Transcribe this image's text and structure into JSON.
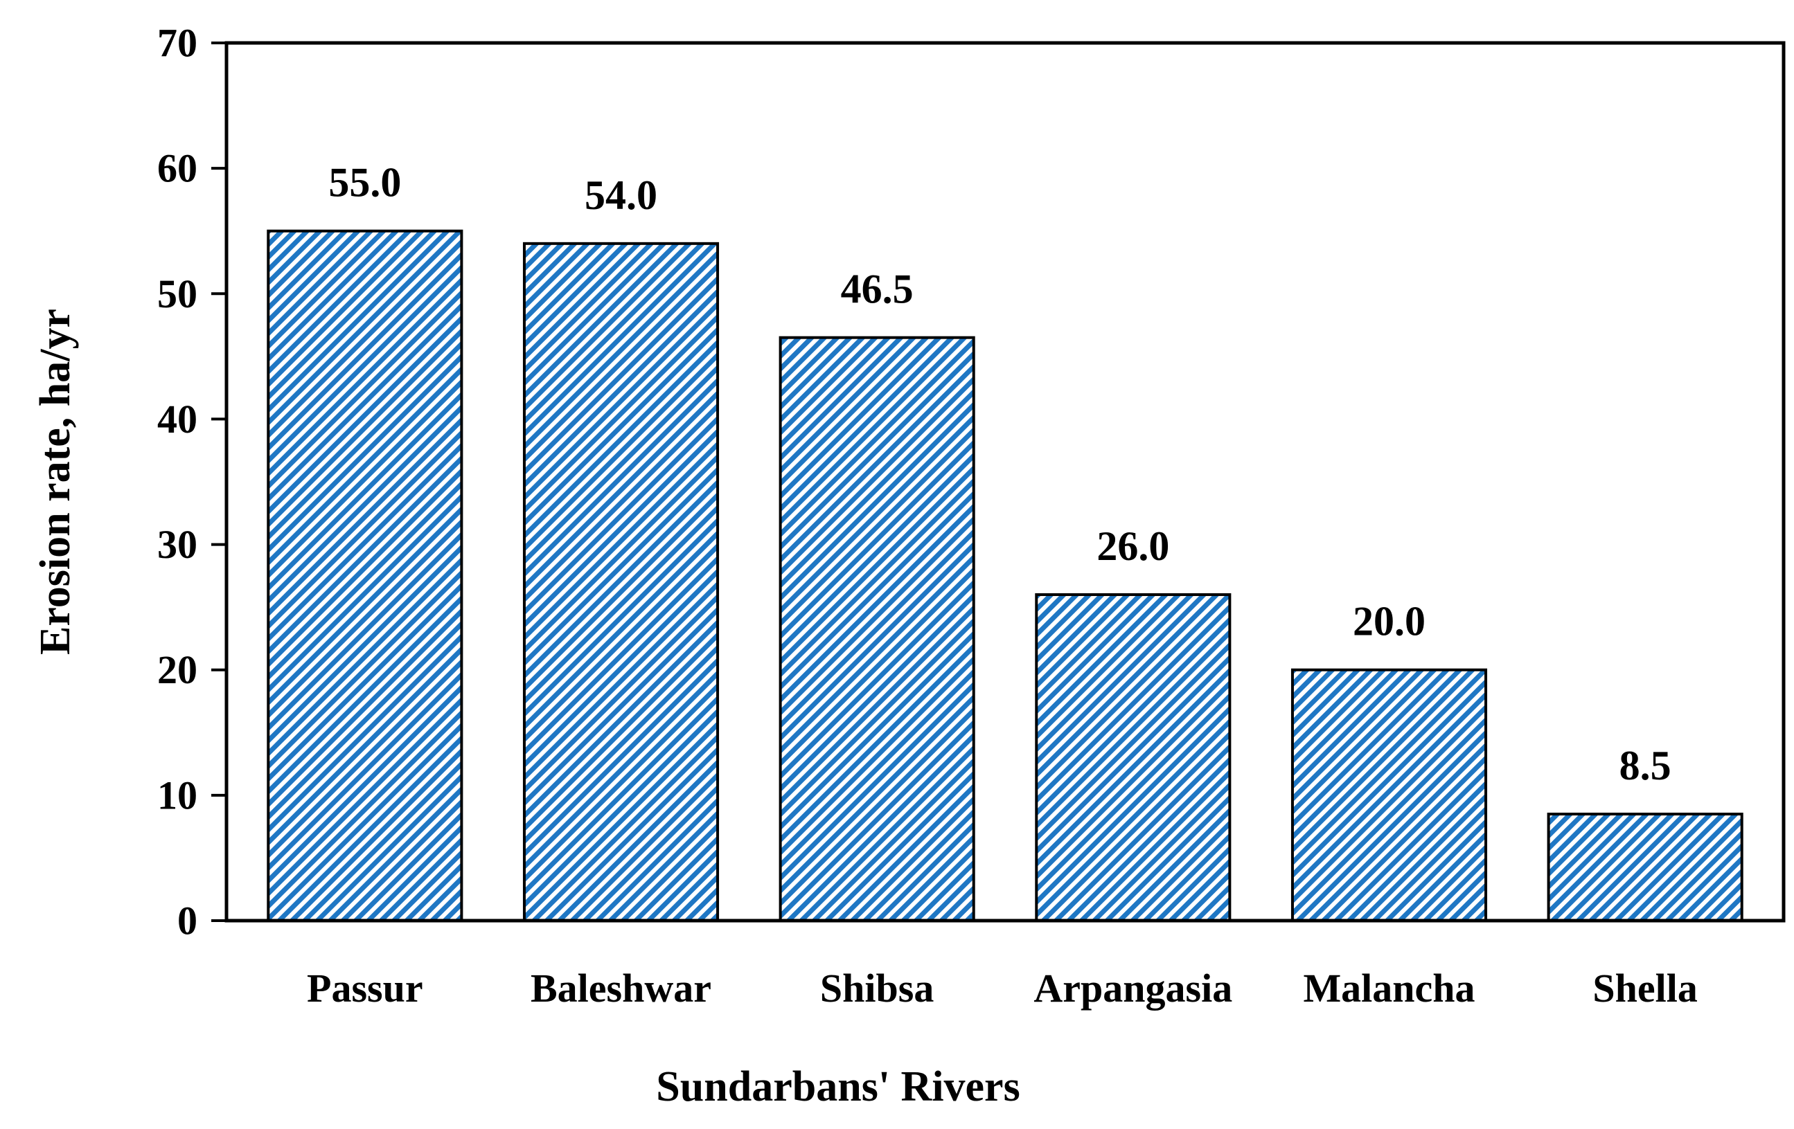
{
  "chart_data": {
    "type": "bar",
    "categories": [
      "Passur",
      "Baleshwar",
      "Shibsa",
      "Arpangasia",
      "Malancha",
      "Shella"
    ],
    "values": [
      55.0,
      54.0,
      46.5,
      26.0,
      20.0,
      8.5
    ],
    "data_labels": [
      "55.0",
      "54.0",
      "46.5",
      "26.0",
      "20.0",
      "8.5"
    ],
    "xlabel": "Sundarbans' Rivers",
    "ylabel": "Erosion rate, ha/yr",
    "ylim": [
      0,
      70
    ],
    "yticks": [
      "0",
      "10",
      "20",
      "30",
      "40",
      "50",
      "60",
      "70"
    ],
    "grid": false,
    "legend": "none",
    "bar_fill": "hatched",
    "colors": {
      "bar_hatch": "#1f77c4",
      "bar_background": "#ffffff",
      "bar_outline": "#000000",
      "axis": "#000000"
    }
  }
}
